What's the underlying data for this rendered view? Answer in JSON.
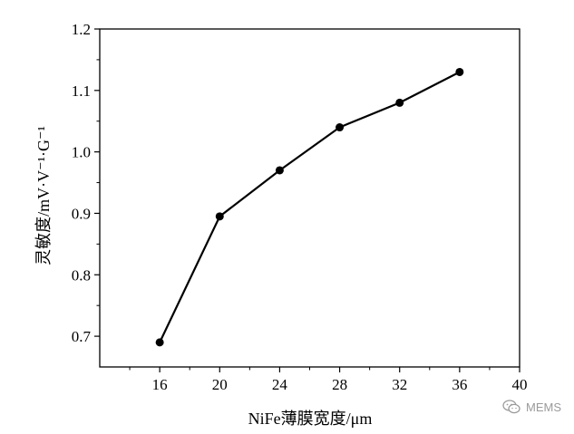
{
  "chart_data": {
    "type": "line",
    "xlabel": "NiFe薄膜宽度/μm",
    "ylabel": "灵敏度/mV·V⁻¹·G⁻¹",
    "xlim": [
      12,
      40
    ],
    "ylim": [
      0.65,
      1.2
    ],
    "xticks": [
      "16",
      "20",
      "24",
      "28",
      "32",
      "36",
      "40"
    ],
    "yticks": [
      "0.7",
      "0.8",
      "0.9",
      "1.0",
      "1.1",
      "1.2"
    ],
    "series": [
      {
        "x": [
          16,
          20,
          24,
          28,
          32,
          36
        ],
        "values": [
          0.69,
          0.895,
          0.97,
          1.04,
          1.08,
          1.13
        ]
      }
    ],
    "marker": "filled-circle",
    "color": "#000000",
    "grid": false
  },
  "watermark": {
    "text": "MEMS",
    "icon": "wechat-icon"
  }
}
